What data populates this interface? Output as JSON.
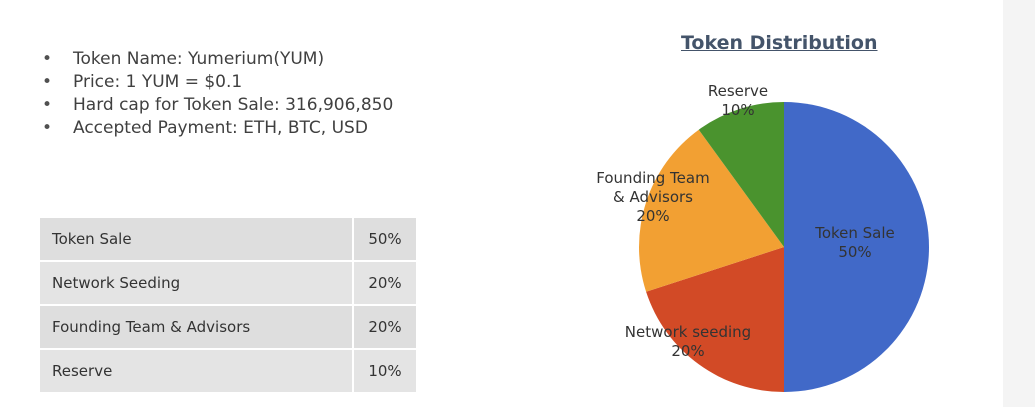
{
  "bullets": [
    "Token Name: Yumerium(YUM)",
    "Price: 1 YUM = $0.1",
    "Hard cap for Token Sale: 316,906,850",
    "Accepted Payment: ETH, BTC, USD"
  ],
  "table": {
    "rows": [
      {
        "name": "Token Sale",
        "pct": "50%"
      },
      {
        "name": "Network Seeding",
        "pct": "20%"
      },
      {
        "name": "Founding Team & Advisors",
        "pct": "20%"
      },
      {
        "name": "Reserve",
        "pct": "10%"
      }
    ]
  },
  "chart_data": {
    "type": "pie",
    "title": "Token Distribution",
    "labels": [
      "Token Sale",
      "Network seeding",
      "Founding Team & Advisors",
      "Reserve"
    ],
    "values": [
      50,
      20,
      20,
      10
    ],
    "value_labels": [
      "50%",
      "20%",
      "20%",
      "10%"
    ],
    "colors": [
      "#4169c8",
      "#d24a26",
      "#f2a033",
      "#4a932e"
    ],
    "legend": "none",
    "start": "12 o'clock",
    "direction": "clockwise"
  }
}
